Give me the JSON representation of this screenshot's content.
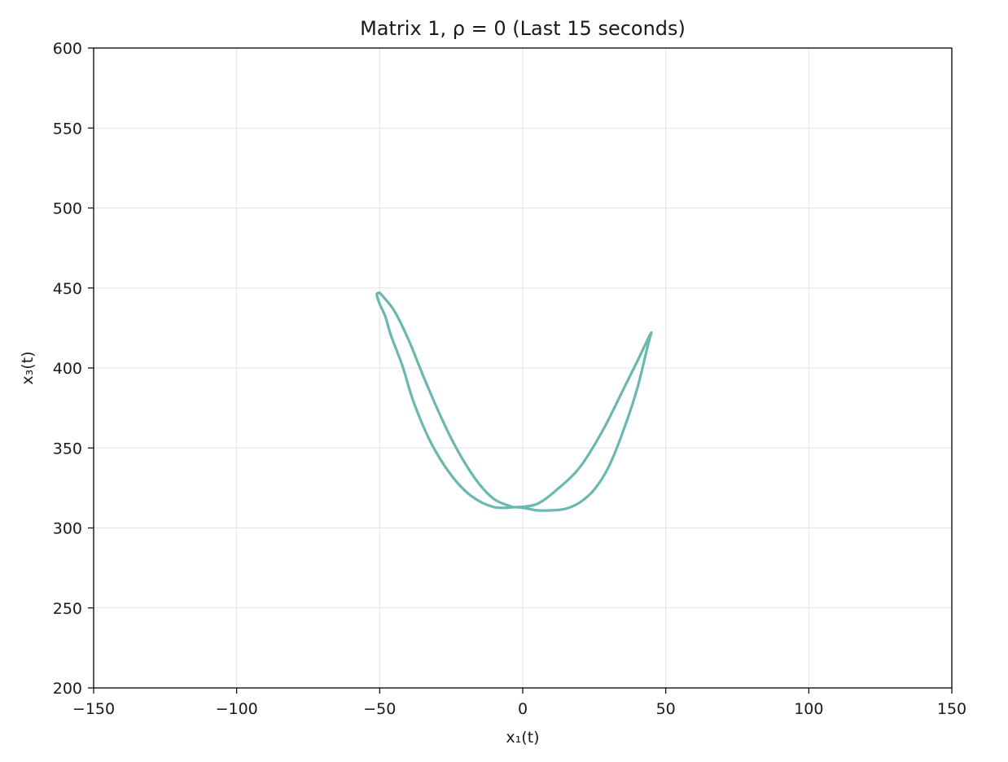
{
  "chart_data": {
    "type": "line",
    "title": "Matrix 1, ρ = 0 (Last 15 seconds)",
    "xlabel": "x₁(t)",
    "ylabel": "x₃(t)",
    "xlim": [
      -150,
      150
    ],
    "ylim": [
      200,
      600
    ],
    "xticks": [
      -150,
      -100,
      -50,
      0,
      50,
      100,
      150
    ],
    "yticks": [
      200,
      250,
      300,
      350,
      400,
      450,
      500,
      550,
      600
    ],
    "xtick_labels": [
      "−150",
      "−100",
      "−50",
      "0",
      "50",
      "100",
      "150"
    ],
    "ytick_labels": [
      "200",
      "250",
      "300",
      "350",
      "400",
      "450",
      "500",
      "550",
      "600"
    ],
    "grid": true,
    "legend": "none",
    "color": "#6ab8b0",
    "series": [
      {
        "x": [
          -50,
          -45,
          -40,
          -35,
          -30,
          -25,
          -20,
          -15,
          -10,
          -5,
          -2,
          5,
          12,
          20,
          28,
          35,
          40,
          44,
          45,
          44,
          40,
          35,
          30,
          25,
          20,
          15,
          10,
          5,
          2,
          -2,
          -10,
          -18,
          -25,
          -32,
          -38,
          -42,
          -46,
          -48,
          -50,
          -51,
          -50
        ],
        "y": [
          447,
          436,
          418,
          396,
          375,
          356,
          340,
          327,
          318,
          314,
          313,
          315,
          324,
          338,
          361,
          386,
          404,
          419,
          422,
          416,
          387,
          360,
          338,
          324,
          316,
          312,
          311,
          311,
          312,
          313,
          313,
          320,
          333,
          353,
          378,
          401,
          420,
          432,
          440,
          446,
          447
        ]
      }
    ]
  }
}
